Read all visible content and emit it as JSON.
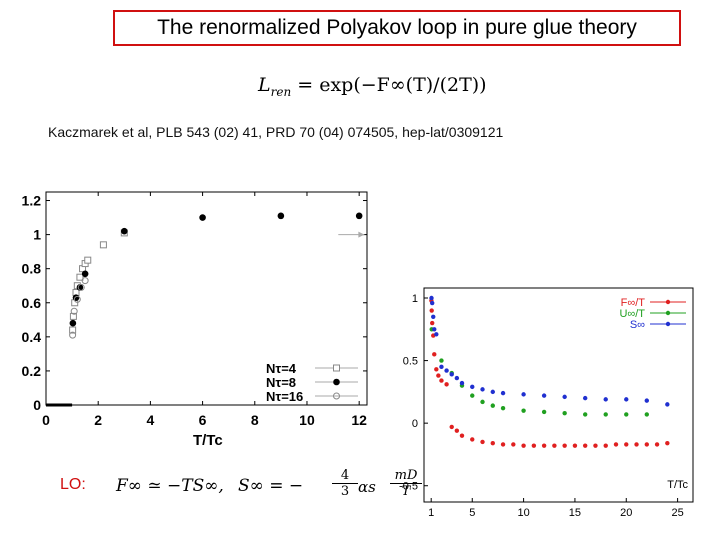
{
  "slide": {
    "title": "The renormalized Polyakov loop in pure glue theory",
    "reference": "Kaczmarek et al, PLB  543 (02) 41,  PRD 70 (04) 074505, hep-lat/0309121",
    "formula_top": {
      "lhs": "L",
      "lhs_sub": "ren",
      "rhs": "= exp(−F∞(T)/(2T))"
    },
    "lo_formula": {
      "label": "LO:",
      "f_inf": "F∞ ≃ −TS∞,",
      "s_inf": "S∞ = −",
      "frac_num": "4",
      "frac_den": "3",
      "alpha": "αs",
      "mass_num": "mD",
      "mass_den": "T"
    }
  },
  "chart_data": [
    {
      "type": "scatter",
      "xlabel": "T/Tc",
      "xticks": [
        "0",
        "2",
        "4",
        "6",
        "8",
        "10",
        "12"
      ],
      "yticks": [
        "0",
        "0.2",
        "0.4",
        "0.6",
        "0.8",
        "1",
        "1.2"
      ],
      "xlim": [
        0,
        12.3
      ],
      "ylim": [
        0,
        1.25
      ],
      "legend_position": "bottom-right",
      "series": [
        {
          "name": "Nτ=4",
          "marker": "open-square",
          "color": "#888888",
          "x": [
            1.02,
            1.05,
            1.1,
            1.15,
            1.2,
            1.3,
            1.4,
            1.5,
            1.6,
            2.2,
            3.0
          ],
          "y": [
            0.44,
            0.52,
            0.6,
            0.66,
            0.7,
            0.75,
            0.8,
            0.83,
            0.85,
            0.94,
            1.01
          ]
        },
        {
          "name": "Nτ=8",
          "marker": "filled-circle",
          "color": "#000000",
          "x": [
            1.03,
            1.15,
            1.3,
            1.5,
            3.0,
            6.0,
            9.0,
            12.0
          ],
          "y": [
            0.48,
            0.63,
            0.69,
            0.77,
            1.02,
            1.1,
            1.11,
            1.11
          ]
        },
        {
          "name": "Nτ=16",
          "marker": "open-circle",
          "color": "#888888",
          "x": [
            1.02,
            1.08,
            1.2,
            1.35,
            1.5
          ],
          "y": [
            0.41,
            0.55,
            0.62,
            0.69,
            0.73
          ]
        },
        {
          "name": "",
          "marker": "line",
          "color": "#000000",
          "x": [
            0,
            1.0
          ],
          "y": [
            0,
            0
          ]
        }
      ],
      "annotations": [
        {
          "type": "arrow",
          "x_from": 11.2,
          "x_to": 12.2,
          "y": 1.0,
          "color": "#aaaaaa"
        }
      ]
    },
    {
      "type": "scatter",
      "xlabel": "T/Tc",
      "xticks": [
        "1",
        "5",
        "10",
        "15",
        "20",
        "25"
      ],
      "xtick_values": [
        1,
        5,
        10,
        15,
        20,
        25
      ],
      "yticks": [
        "-0.5",
        "0",
        "0.5",
        "1"
      ],
      "ytick_values": [
        -0.5,
        0,
        0.5,
        1
      ],
      "xlim": [
        0.3,
        26.5
      ],
      "ylim": [
        -0.63,
        1.08
      ],
      "legend_position": "top-right",
      "series": [
        {
          "name": "F∞/T",
          "color": "#e02020",
          "x": [
            1.02,
            1.05,
            1.1,
            1.2,
            1.3,
            1.5,
            1.7,
            2.0,
            2.5,
            3.0,
            3.5,
            4.0,
            5.0,
            6.0,
            7.0,
            8.0,
            9.0,
            10.0,
            11.0,
            12.0,
            13.0,
            14.0,
            15.0,
            16.0,
            17.0,
            18.0,
            19.0,
            20.0,
            21.0,
            22.0,
            23.0,
            24.0
          ],
          "y": [
            0.98,
            0.9,
            0.8,
            0.7,
            0.55,
            0.43,
            0.38,
            0.34,
            0.31,
            -0.03,
            -0.06,
            -0.1,
            -0.13,
            -0.15,
            -0.16,
            -0.17,
            -0.17,
            -0.18,
            -0.18,
            -0.18,
            -0.18,
            -0.18,
            -0.18,
            -0.18,
            -0.18,
            -0.18,
            -0.17,
            -0.17,
            -0.17,
            -0.17,
            -0.17,
            -0.16
          ]
        },
        {
          "name": "U∞/T",
          "color": "#20a020",
          "x": [
            1.05,
            2.0,
            3.0,
            4.0,
            5.0,
            6.0,
            7.0,
            8.0,
            10.0,
            12.0,
            14.0,
            16.0,
            18.0,
            20.0,
            22.0
          ],
          "y": [
            0.75,
            0.5,
            0.4,
            0.3,
            0.22,
            0.17,
            0.14,
            0.12,
            0.1,
            0.09,
            0.08,
            0.07,
            0.07,
            0.07,
            0.07
          ]
        },
        {
          "name": "S∞",
          "color": "#2030d0",
          "x": [
            1.03,
            1.1,
            1.2,
            1.3,
            1.5,
            2.0,
            2.5,
            3.0,
            3.5,
            4.0,
            5.0,
            6.0,
            7.0,
            8.0,
            10.0,
            12.0,
            14.0,
            16.0,
            18.0,
            20.0,
            22.0,
            24.0
          ],
          "y": [
            1.0,
            0.96,
            0.85,
            0.75,
            0.71,
            0.45,
            0.42,
            0.39,
            0.36,
            0.32,
            0.29,
            0.27,
            0.25,
            0.24,
            0.23,
            0.22,
            0.21,
            0.2,
            0.19,
            0.19,
            0.18,
            0.15
          ]
        }
      ]
    }
  ]
}
